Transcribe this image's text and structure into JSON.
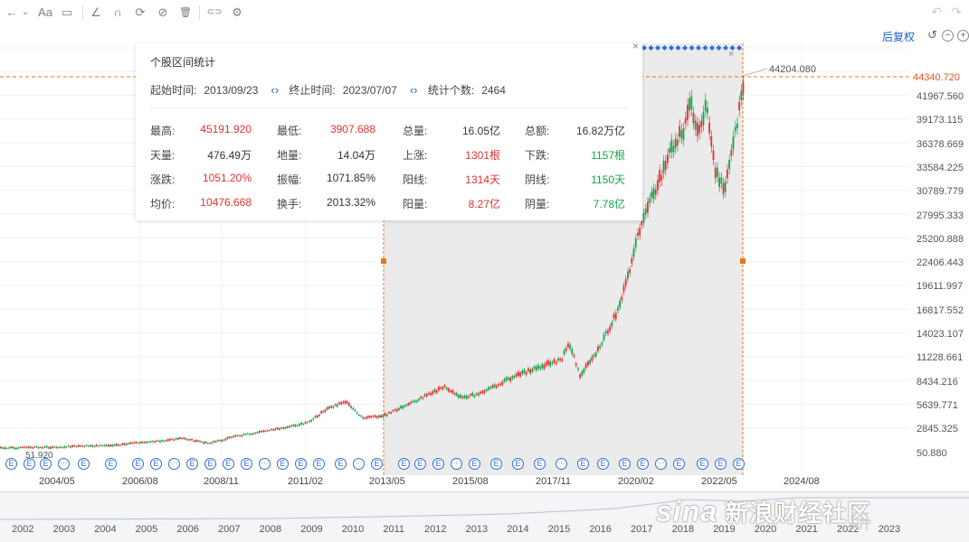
{
  "toolbar": {
    "items": [
      {
        "name": "back-arrow-icon",
        "glyph": "←"
      },
      {
        "name": "dropdown-chevron-icon",
        "glyph": "⌄"
      },
      {
        "name": "font-size-icon",
        "glyph": "Aa"
      },
      {
        "name": "comment-icon",
        "glyph": "▭"
      },
      {
        "name": "draw-line-icon",
        "glyph": "∠"
      },
      {
        "name": "magnet-icon",
        "glyph": "∩"
      },
      {
        "name": "sync-icon",
        "glyph": "⟳"
      },
      {
        "name": "hide-icon",
        "glyph": "⊘"
      },
      {
        "name": "trash-icon",
        "glyph": "🗑"
      },
      {
        "name": "link-icon",
        "glyph": "⊂⊃"
      },
      {
        "name": "settings-gear-icon",
        "glyph": "⚙"
      }
    ],
    "undo_glyph": "↶",
    "redo_glyph": "↷"
  },
  "header": {
    "adjust_label": "后复权",
    "icons": [
      "reset-icon",
      "zoom-out-icon",
      "zoom-in-icon"
    ]
  },
  "popup": {
    "title": "个股区间统计",
    "start_label": "起始时间:",
    "start_value": "2013/09/23",
    "end_label": "终止时间:",
    "end_value": "2023/07/07",
    "count_label": "统计个数:",
    "count_value": "2464",
    "close_glyph": "×",
    "stats": [
      [
        {
          "l": "最高:",
          "v": "45191.920",
          "c": "red"
        },
        {
          "l": "最低:",
          "v": "3907.688",
          "c": "red"
        },
        {
          "l": "总量:",
          "v": "16.05亿",
          "c": "dark"
        },
        {
          "l": "总额:",
          "v": "16.82万亿",
          "c": "dark"
        }
      ],
      [
        {
          "l": "天量:",
          "v": "476.49万",
          "c": "dark"
        },
        {
          "l": "地量:",
          "v": "14.04万",
          "c": "dark"
        },
        {
          "l": "上涨:",
          "v": "1301根",
          "c": "red"
        },
        {
          "l": "下跌:",
          "v": "1157根",
          "c": "green"
        }
      ],
      [
        {
          "l": "涨跌:",
          "v": "1051.20%",
          "c": "red"
        },
        {
          "l": "振幅:",
          "v": "1071.85%",
          "c": "dark"
        },
        {
          "l": "阳线:",
          "v": "1314天",
          "c": "red"
        },
        {
          "l": "阴线:",
          "v": "1150天",
          "c": "green"
        }
      ],
      [
        {
          "l": "均价:",
          "v": "10476.668",
          "c": "red"
        },
        {
          "l": "换手:",
          "v": "2013.32%",
          "c": "dark"
        },
        {
          "l": "阳量:",
          "v": "8.27亿",
          "c": "red"
        },
        {
          "l": "阴量:",
          "v": "7.78亿",
          "c": "green"
        }
      ]
    ]
  },
  "price_axis": {
    "current": "44340.720",
    "ticks": [
      "41967.560",
      "39173.115",
      "36378.669",
      "33584.225",
      "30789.779",
      "27995.333",
      "25200.888",
      "22406.443",
      "19611.997",
      "16817.552",
      "14023.107",
      "11228.661",
      "8434.216",
      "5639.771",
      "2845.325",
      "50.880"
    ]
  },
  "chart_labels": {
    "start_price": "51.920",
    "last_price": "44204.080"
  },
  "time_axis": [
    "2004/05",
    "2006/08",
    "2008/11",
    "2011/02",
    "2013/05",
    "2015/08",
    "2017/11",
    "2020/02",
    "2022/05",
    "2024/08"
  ],
  "navigator_years": [
    "2002",
    "2003",
    "2004",
    "2005",
    "2006",
    "2007",
    "2008",
    "2009",
    "2010",
    "2011",
    "2012",
    "2013",
    "2014",
    "2015",
    "2016",
    "2017",
    "2018",
    "2019",
    "2020",
    "2021",
    "2022",
    "2023"
  ],
  "event_badges": {
    "e": "E",
    "d": "···"
  },
  "watermark": {
    "brand": "sina",
    "text": "新浪财经社区",
    "extra": "研"
  },
  "colors": {
    "up": "#e33232",
    "down": "#16a34a",
    "accent": "#1f5fd1",
    "selection": "#e8771f"
  }
}
